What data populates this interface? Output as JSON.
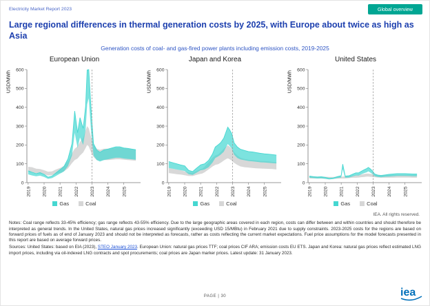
{
  "page": {
    "header": {
      "report_title": "Electricity Market Report 2023",
      "nav_button": "Global overview"
    },
    "title": "Large regional differences in thermal generation costs by 2025, with Europe about twice as high as Asia",
    "subtitle": "Generation costs of coal- and gas-fired power plants including emission costs, 2019-2025",
    "rights": "IEA. All rights reserved.",
    "notes": "Notes: Coal range reflects 33-45% efficiency; gas range reflects 43-55% efficiency. Due to the large geographic areas covered in each region, costs can differ between and within countries and should therefore be interpreted as general trends. In the United States, natural gas prices increased significantly (exceeding USD 15/MBtu) in February 2021 due to supply constraints. 2023-2025 costs for the regions are based on forward prices of fuels as of end of January 2023 and should not be interpreted as forecasts, rather as costs reflecting the current market expectations. Fuel price assumptions for the model forecasts presented in this report are based on average forward prices.",
    "sources_prefix": "Sources: United States: based on EIA (2023), ",
    "sources_link": "STEO January 2023",
    "sources_suffix": ". European Union: natural gas prices TTF; coal prices CIF ARA; emission costs EU ETS. Japan and Korea: natural gas prices reflect estimated LNG import prices, including via oil-indexed LNG contracts and spot procurements; coal prices are Japan marker prices. Latest update: 31 January 2023.",
    "footer_page": "PAGE | 30",
    "logo": "iea"
  },
  "chart_data": {
    "type": "area",
    "title": "Generation costs of coal- and gas-fired power plants including emission costs, 2019-2025",
    "ylabel": "USD/MWh",
    "xlabel": "",
    "ylim": [
      0,
      600
    ],
    "yticks": [
      0,
      100,
      200,
      300,
      400,
      500,
      600
    ],
    "xticks": [
      2019,
      2020,
      2021,
      2022,
      2023,
      2024,
      2025
    ],
    "forecast_boundary": 2023,
    "grid": false,
    "legend_position": "bottom",
    "legend": [
      {
        "label": "Gas",
        "color": "#45D7D1"
      },
      {
        "label": "Coal",
        "color": "#D6D6D6"
      }
    ],
    "x": [
      2019.0,
      2019.25,
      2019.5,
      2019.75,
      2020.0,
      2020.25,
      2020.5,
      2020.75,
      2021.0,
      2021.1,
      2021.25,
      2021.5,
      2021.75,
      2021.92,
      2022.1,
      2022.25,
      2022.45,
      2022.6,
      2022.7,
      2022.8,
      2022.95,
      2023.1,
      2023.3,
      2023.5,
      2023.75,
      2024.0,
      2024.25,
      2024.5,
      2024.75,
      2025.0,
      2025.25,
      2025.5,
      2025.75
    ],
    "panels": [
      {
        "title": "European Union",
        "gas_low": [
          44,
          38,
          34,
          37,
          30,
          20,
          24,
          36,
          48,
          52,
          60,
          88,
          144,
          264,
          184,
          240,
          200,
          280,
          416,
          448,
          264,
          144,
          120,
          112,
          120,
          124,
          128,
          132,
          132,
          128,
          126,
          124,
          122
        ],
        "gas_high": [
          63,
          55,
          48,
          53,
          44,
          29,
          35,
          52,
          69,
          75,
          86,
          127,
          207,
          380,
          265,
          345,
          288,
          403,
          598,
          600,
          380,
          207,
          173,
          161,
          173,
          178,
          184,
          190,
          190,
          184,
          182,
          178,
          175
        ],
        "coal_low": [
          56,
          54,
          50,
          48,
          44,
          38,
          40,
          46,
          52,
          54,
          60,
          76,
          104,
          120,
          128,
          144,
          160,
          184,
          200,
          192,
          160,
          136,
          120,
          116,
          120,
          120,
          122,
          124,
          124,
          122,
          120,
          118,
          116
        ],
        "coal_high": [
          84,
          82,
          74,
          72,
          66,
          58,
          60,
          70,
          78,
          82,
          90,
          114,
          156,
          180,
          192,
          216,
          240,
          276,
          300,
          288,
          240,
          204,
          180,
          174,
          180,
          180,
          182,
          186,
          186,
          182,
          180,
          178,
          174
        ]
      },
      {
        "title": "Japan and Korea",
        "gas_low": [
          78,
          74,
          70,
          66,
          62,
          45,
          41,
          53,
          66,
          67,
          70,
          82,
          107,
          131,
          139,
          148,
          164,
          189,
          205,
          197,
          180,
          148,
          131,
          123,
          119,
          115,
          113,
          111,
          108,
          107,
          105,
          103,
          102
        ],
        "gas_high": [
          112,
          106,
          100,
          94,
          89,
          65,
          59,
          77,
          94,
          97,
          100,
          118,
          153,
          189,
          201,
          212,
          236,
          271,
          295,
          283,
          260,
          212,
          189,
          177,
          171,
          165,
          163,
          159,
          156,
          153,
          151,
          149,
          146
        ],
        "coal_low": [
          51,
          48,
          45,
          43,
          39,
          35,
          35,
          41,
          47,
          48,
          55,
          70,
          86,
          94,
          98,
          105,
          117,
          125,
          129,
          125,
          117,
          105,
          94,
          86,
          82,
          80,
          78,
          76,
          75,
          74,
          73,
          72,
          70
        ],
        "coal_high": [
          78,
          74,
          70,
          66,
          60,
          54,
          54,
          62,
          72,
          74,
          84,
          108,
          132,
          144,
          150,
          162,
          180,
          192,
          198,
          192,
          180,
          162,
          144,
          132,
          126,
          122,
          120,
          118,
          115,
          114,
          113,
          110,
          108
        ]
      },
      {
        "title": "United States",
        "gas_low": [
          26,
          24,
          22,
          23,
          20,
          17,
          19,
          24,
          27,
          72,
          26,
          27,
          34,
          38,
          38,
          44,
          51,
          55,
          60,
          55,
          47,
          34,
          30,
          28,
          31,
          32,
          34,
          36,
          36,
          36,
          35,
          34,
          34
        ],
        "gas_high": [
          35,
          32,
          30,
          31,
          28,
          23,
          25,
          32,
          37,
          98,
          35,
          37,
          46,
          52,
          52,
          60,
          69,
          75,
          81,
          75,
          63,
          46,
          40,
          38,
          41,
          44,
          46,
          48,
          48,
          48,
          47,
          46,
          46
        ],
        "coal_low": [
          22,
          22,
          22,
          22,
          21,
          20,
          20,
          21,
          22,
          22,
          22,
          24,
          26,
          26,
          27,
          29,
          30,
          32,
          32,
          31,
          30,
          29,
          27,
          26,
          26,
          26,
          26,
          27,
          27,
          27,
          27,
          26,
          26
        ],
        "coal_high": [
          34,
          34,
          32,
          32,
          31,
          30,
          30,
          31,
          32,
          32,
          34,
          36,
          38,
          40,
          41,
          43,
          46,
          48,
          48,
          47,
          46,
          43,
          41,
          40,
          40,
          40,
          40,
          41,
          41,
          41,
          41,
          40,
          40
        ]
      }
    ]
  }
}
